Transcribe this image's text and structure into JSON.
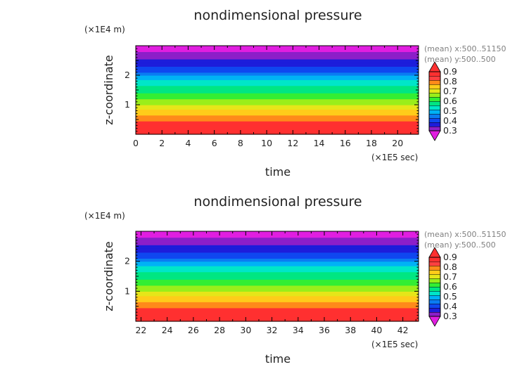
{
  "chart_data": [
    {
      "type": "heatmap",
      "title": "nondimensional pressure",
      "xlabel": "time",
      "ylabel": "z-coordinate",
      "x_unit": "(×1E5 sec)",
      "y_unit": "(×1E4 m)",
      "annotations": [
        "(mean) x:500..51150",
        "(mean) y:500..500"
      ],
      "xlim": [
        0,
        21.6
      ],
      "ylim": [
        0,
        3.0
      ],
      "x_ticks": [
        0,
        2,
        4,
        6,
        8,
        10,
        12,
        14,
        16,
        18,
        20
      ],
      "y_ticks": [
        1,
        2
      ],
      "z_profile": {
        "z": [
          0.0,
          0.45,
          0.65,
          0.9,
          1.1,
          1.4,
          1.65,
          1.9,
          2.1,
          2.4,
          2.65,
          2.9,
          3.0
        ],
        "value": [
          0.98,
          0.9,
          0.85,
          0.78,
          0.72,
          0.65,
          0.6,
          0.53,
          0.45,
          0.38,
          0.33,
          0.28,
          0.27
        ]
      },
      "colorbar": {
        "levels": [
          0.3,
          0.35,
          0.4,
          0.45,
          0.5,
          0.55,
          0.6,
          0.65,
          0.7,
          0.75,
          0.8,
          0.85,
          0.9
        ],
        "labels": [
          "0.9",
          "0.8",
          "0.7",
          "0.6",
          "0.5",
          "0.4",
          "0.3"
        ],
        "colors": [
          "#8c1fc9",
          "#1d1ddb",
          "#0f47f0",
          "#0a7cf2",
          "#00b2f5",
          "#00e6c8",
          "#00e682",
          "#33ee33",
          "#9aee1a",
          "#e6e619",
          "#ffcc1a",
          "#ff8a1a",
          "#ff4040",
          "#ff3030"
        ],
        "under_color": "#e01ee0",
        "over_color": "#ff3030"
      }
    },
    {
      "type": "heatmap",
      "title": "nondimensional pressure",
      "xlabel": "time",
      "ylabel": "z-coordinate",
      "x_unit": "(×1E5 sec)",
      "y_unit": "(×1E4 m)",
      "annotations": [
        "(mean) x:500..51150",
        "(mean) y:500..500"
      ],
      "xlim": [
        21.6,
        43.2
      ],
      "ylim": [
        0,
        3.0
      ],
      "x_ticks": [
        22,
        24,
        26,
        28,
        30,
        32,
        34,
        36,
        38,
        40,
        42
      ],
      "y_ticks": [
        1,
        2
      ],
      "z_profile": {
        "z": [
          0.0,
          0.45,
          0.65,
          0.9,
          1.1,
          1.4,
          1.65,
          1.9,
          2.1,
          2.4,
          2.65,
          2.9,
          3.0
        ],
        "value": [
          0.98,
          0.9,
          0.85,
          0.78,
          0.72,
          0.65,
          0.6,
          0.53,
          0.45,
          0.38,
          0.33,
          0.28,
          0.27
        ]
      },
      "colorbar": {
        "levels": [
          0.3,
          0.35,
          0.4,
          0.45,
          0.5,
          0.55,
          0.6,
          0.65,
          0.7,
          0.75,
          0.8,
          0.85,
          0.9
        ],
        "labels": [
          "0.9",
          "0.8",
          "0.7",
          "0.6",
          "0.5",
          "0.4",
          "0.3"
        ],
        "colors": [
          "#8c1fc9",
          "#1d1ddb",
          "#0f47f0",
          "#0a7cf2",
          "#00b2f5",
          "#00e6c8",
          "#00e682",
          "#33ee33",
          "#9aee1a",
          "#e6e619",
          "#ffcc1a",
          "#ff8a1a",
          "#ff4040",
          "#ff3030"
        ],
        "under_color": "#e01ee0",
        "over_color": "#ff3030"
      }
    }
  ]
}
